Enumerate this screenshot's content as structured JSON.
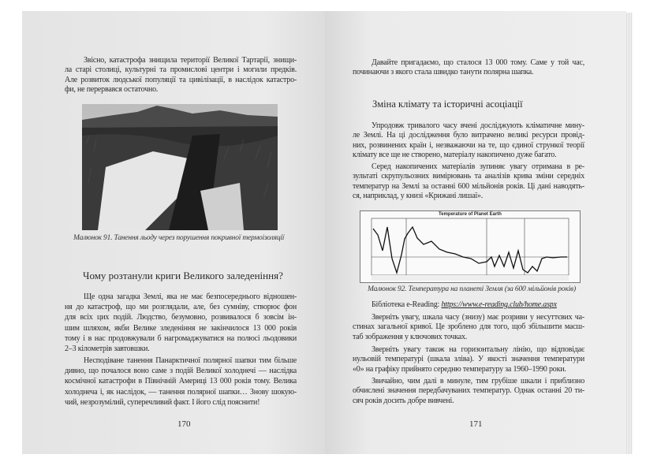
{
  "left_page": {
    "intro": [
      "Звісно, катастрофа знищила території Великої Тартарії, знищи-",
      "ла старі столиці, культурні та промислові центри і могили предків.",
      "Але розвиток людської популяції та цивілізації, в наслідок катастро-",
      "фи, не перервався остаточно."
    ],
    "figure_caption": "Малюнок 91. Танення льоду через порушення покривної термоізоляції",
    "heading": "Чому розтанули криги Великого заледеніння?",
    "para1": [
      "Ще одна загадка Землі, яка не має безпосереднього відношен-",
      "ня до катастроф, що ми розглядали, але, без сумніву, створює фон",
      "для всіх цих подій. Людство, безумовно, розвивалося б зовсім ін-",
      "шим шляхом, якби Велике зледеніння не закінчилося 13 000 років",
      "тому і в нас продовжували б нагромаджуватися на полюсі льодовики",
      "2–3 кілометрів завтовшки."
    ],
    "para2": [
      "Несподіване танення Панарктичної полярної шапки тим більше",
      "дивно, що почалося воно саме з подій Великої холоднечі — наслідка",
      "космічної катастрофи в Північній Америці 13 000 років тому. Велика",
      "холоднеча і, як наслідок, — танення полярної шапки… Знову шокую-",
      "чий, незрозумілий, суперечливий факт. І його слід пояснити!"
    ],
    "page_number": "170"
  },
  "right_page": {
    "intro": [
      "Давайте пригадаємо, що сталося 13 000 тому. Саме у той час,",
      "починаючи з якого стала швидко танути полярна шапка."
    ],
    "heading": "Зміна клімату та історичні асоціації",
    "para1": [
      "Упродовж тривалого часу вчені досліджують кліматичне мину-",
      "ле Землі. На ці дослідження було витрачено великі ресурси провід-",
      "них, розвинених країн і, незважаючи на те, що єдиної стрункої теорії",
      "клімату все ще не створено, матеріалу накопичено дуже багато."
    ],
    "para2": [
      "Серед накопичених матеріалів зупиняє увагу отримана в ре-",
      "зультаті скрупульозних вимірювань та аналізів крива зміни середніх",
      "температур на Землі за останні 600 мільйонів років. Ці дані наводять-",
      "ся, наприклад, у книзі «Крижані лишаї»."
    ],
    "chart_title": "Temperature of Planet Earth",
    "figure_caption": "Малюнок 92. Температура на планеті Земля (за 600 мільйонів років)",
    "library_label": "Бібліотека e-Reading: ",
    "library_link": "https://www.e-reading.club/home.aspx",
    "para3": [
      "Зверніть увагу, шкала часу (знизу) має розриви у несуттєвих ча-",
      "стинах загальної кривої. Це зроблено для того, щоб збільшити масш-",
      "таб зображення у ключових точках."
    ],
    "para4": [
      "Зверніть увагу також на горизонтальну лінію, що відповідає",
      "нульовій температурі (шкала зліва). У якості значення температури",
      "«0» на графіку прийнято середню температуру за 1960–1990 роки."
    ],
    "para5": [
      "Звичайно, чим далі в минуле, тим грубіше шкали і приблизно",
      "обчислені значення передбачуваних температур. Однак останні 20 ти-",
      "сяч років досить добре вивчені."
    ],
    "page_number": "171"
  }
}
